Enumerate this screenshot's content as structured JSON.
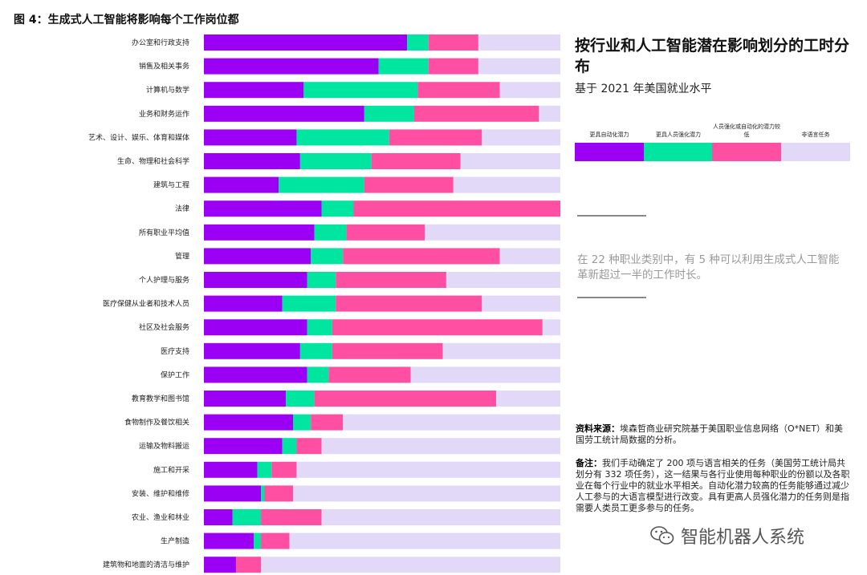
{
  "figure_title": "图 4：生成式人工智能将影响每个工作岗位都",
  "panel": {
    "title": "按行业和人工智能潜在影响划分的工时分布",
    "subtitle": "基于 2021 年美国就业水平",
    "callout": "在 22 种职业类别中，有 5 种可以利用生成式人工智能革新超过一半的工作时长。",
    "source_label": "资料来源：",
    "source_text": "埃森哲商业研究院基于美国职业信息网络（O*NET）和美国劳工统计局数据的分析。",
    "notes_label": "备注：",
    "notes_text": "我们手动确定了 200 项与语言相关的任务（美国劳工统计局共划分有 332 项任务），这一结果与各行业使用每种职业的份额以及各职业在每个行业中的就业水平相关。自动化潜力较高的任务能够通过减少人工参与的大语言模型进行改变。具有更高人员强化潜力的任务则是指需要人类员工更多参与的任务。"
  },
  "legend": [
    {
      "label": "更具自动化潜力",
      "color": "#9b00f5"
    },
    {
      "label": "更具人员强化潜力",
      "color": "#00e6a0"
    },
    {
      "label": "人员强化或自动化的潜力较低",
      "color": "#ff4fa3"
    },
    {
      "label": "非语言任务",
      "color": "#e2d8f8"
    }
  ],
  "watermark": "智能机器人系统",
  "chart_data": {
    "type": "bar",
    "orientation": "horizontal",
    "stacked": true,
    "unit": "percent of work time",
    "xlim": [
      0,
      100
    ],
    "categories": [
      "办公室和行政支持",
      "销售及相关事务",
      "计算机与数学",
      "业务和财务运作",
      "艺术、设计、娱乐、体育和媒体",
      "生命、物理和社会科学",
      "建筑与工程",
      "法律",
      "所有职业平均值",
      "管理",
      "个人护理与服务",
      "医疗保健从业者和技术人员",
      "社区及社会服务",
      "医疗支持",
      "保护工作",
      "教育教学和图书馆",
      "食物制作及餐饮相关",
      "运输及物料搬运",
      "施工和开采",
      "安装、维护和维修",
      "农业、渔业和林业",
      "生产制造",
      "建筑物和地面的清洁与维护"
    ],
    "series": [
      {
        "name": "更具自动化潜力",
        "color": "#9b00f5",
        "values": [
          57,
          49,
          28,
          45,
          26,
          27,
          21,
          33,
          31,
          30,
          29,
          22,
          29,
          27,
          29,
          23,
          25,
          22,
          15,
          16,
          8,
          14,
          9
        ]
      },
      {
        "name": "更具人员强化潜力",
        "color": "#00e6a0",
        "values": [
          6,
          14,
          32,
          14,
          26,
          20,
          24,
          9,
          9,
          9,
          8,
          15,
          7,
          9,
          6,
          8,
          5,
          4,
          4,
          1,
          8,
          2,
          0
        ]
      },
      {
        "name": "人员强化或自动化的潜力较低",
        "color": "#ff4fa3",
        "values": [
          14,
          14,
          23,
          35,
          26,
          25,
          25,
          58,
          22,
          44,
          31,
          41,
          59,
          31,
          23,
          51,
          9,
          7,
          7,
          8,
          17,
          8,
          7
        ]
      },
      {
        "name": "非语言任务",
        "color": "#e2d8f8",
        "values": [
          23,
          23,
          17,
          6,
          22,
          28,
          30,
          0,
          38,
          17,
          32,
          22,
          5,
          33,
          42,
          18,
          61,
          67,
          74,
          75,
          67,
          76,
          84
        ]
      }
    ]
  }
}
